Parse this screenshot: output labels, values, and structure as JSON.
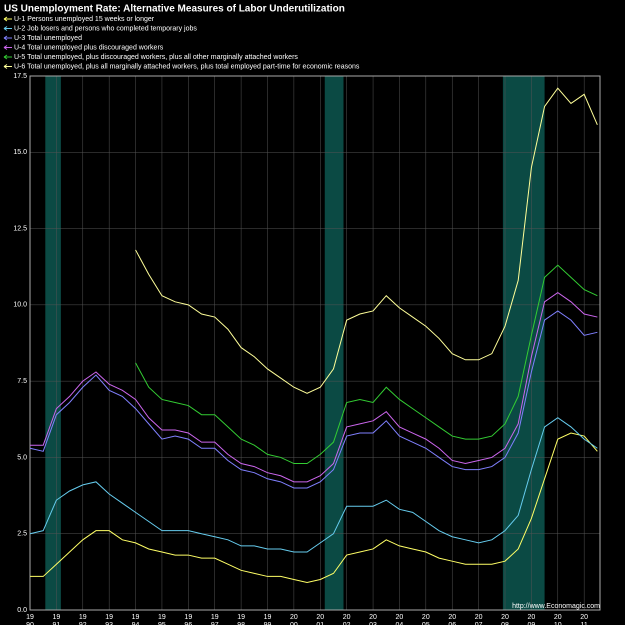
{
  "chart_data": {
    "type": "line",
    "title": "US Unemployment Rate: Alternative Measures of Labor Underutilization",
    "source": "http://www.Economagic.com",
    "x": [
      1990,
      1990.5,
      1991,
      1991.5,
      1992,
      1992.5,
      1993,
      1993.5,
      1994,
      1994.5,
      1995,
      1995.5,
      1996,
      1996.5,
      1997,
      1997.5,
      1998,
      1998.5,
      1999,
      1999.5,
      2000,
      2000.5,
      2001,
      2001.5,
      2002,
      2002.5,
      2003,
      2003.5,
      2004,
      2004.5,
      2005,
      2005.5,
      2006,
      2006.5,
      2007,
      2007.5,
      2008,
      2008.5,
      2009,
      2009.5,
      2010,
      2010.5,
      2011,
      2011.5
    ],
    "series": [
      {
        "name": "U-1 Persons unemployed 15 weeks or longer",
        "color": "#ffff66",
        "values": [
          1.1,
          1.1,
          1.5,
          1.9,
          2.3,
          2.6,
          2.6,
          2.3,
          2.2,
          2.0,
          1.9,
          1.8,
          1.8,
          1.7,
          1.7,
          1.5,
          1.3,
          1.2,
          1.1,
          1.1,
          1.0,
          0.9,
          1.0,
          1.2,
          1.8,
          1.9,
          2.0,
          2.3,
          2.1,
          2.0,
          1.9,
          1.7,
          1.6,
          1.5,
          1.5,
          1.5,
          1.6,
          2.0,
          3.0,
          4.3,
          5.6,
          5.8,
          5.7,
          5.2
        ]
      },
      {
        "name": "U-2 Job losers and persons who completed temporary jobs",
        "color": "#66ccee",
        "values": [
          2.5,
          2.6,
          3.6,
          3.9,
          4.1,
          4.2,
          3.8,
          3.5,
          3.2,
          2.9,
          2.6,
          2.6,
          2.6,
          2.5,
          2.4,
          2.3,
          2.1,
          2.1,
          2.0,
          2.0,
          1.9,
          1.9,
          2.2,
          2.5,
          3.4,
          3.4,
          3.4,
          3.6,
          3.3,
          3.2,
          2.9,
          2.6,
          2.4,
          2.3,
          2.2,
          2.3,
          2.6,
          3.1,
          4.6,
          6.0,
          6.3,
          6.0,
          5.6,
          5.3
        ]
      },
      {
        "name": "U-3 Total unemployed",
        "color": "#8080ff",
        "values": [
          5.3,
          5.2,
          6.4,
          6.8,
          7.3,
          7.7,
          7.2,
          7.0,
          6.6,
          6.1,
          5.6,
          5.7,
          5.6,
          5.3,
          5.3,
          4.9,
          4.6,
          4.5,
          4.3,
          4.2,
          4.0,
          4.0,
          4.2,
          4.6,
          5.7,
          5.8,
          5.8,
          6.2,
          5.7,
          5.5,
          5.3,
          5.0,
          4.7,
          4.6,
          4.6,
          4.7,
          5.0,
          5.8,
          7.8,
          9.5,
          9.8,
          9.5,
          9.0,
          9.1
        ]
      },
      {
        "name": "U-4 Total unemployed plus discouraged workers",
        "color": "#cc66ee",
        "values": [
          5.4,
          5.4,
          6.6,
          7.0,
          7.5,
          7.8,
          7.4,
          7.2,
          6.9,
          6.3,
          5.9,
          5.9,
          5.8,
          5.5,
          5.5,
          5.1,
          4.8,
          4.7,
          4.5,
          4.4,
          4.2,
          4.2,
          4.4,
          4.8,
          6.0,
          6.1,
          6.2,
          6.5,
          6.0,
          5.8,
          5.6,
          5.3,
          4.9,
          4.8,
          4.9,
          5.0,
          5.3,
          6.1,
          8.3,
          10.1,
          10.4,
          10.1,
          9.7,
          9.6
        ]
      },
      {
        "name": "U-5 Total unemployed, plus discouraged workers, plus all other marginally attached workers",
        "color": "#33cc33",
        "values": [
          null,
          null,
          null,
          null,
          null,
          null,
          null,
          null,
          8.1,
          7.3,
          6.9,
          6.8,
          6.7,
          6.4,
          6.4,
          6.0,
          5.6,
          5.4,
          5.1,
          5.0,
          4.8,
          4.8,
          5.1,
          5.5,
          6.8,
          6.9,
          6.8,
          7.3,
          6.9,
          6.6,
          6.3,
          6.0,
          5.7,
          5.6,
          5.6,
          5.7,
          6.1,
          7.0,
          9.0,
          10.9,
          11.3,
          10.9,
          10.5,
          10.3
        ]
      },
      {
        "name": "U-6 Total unemployed, plus all marginally attached workers, plus total employed part-time for economic reasons",
        "color": "#ffff99",
        "values": [
          null,
          null,
          null,
          null,
          null,
          null,
          null,
          null,
          11.8,
          11.0,
          10.3,
          10.1,
          10.0,
          9.7,
          9.6,
          9.2,
          8.6,
          8.3,
          7.9,
          7.6,
          7.3,
          7.1,
          7.3,
          7.9,
          9.5,
          9.7,
          9.8,
          10.3,
          9.9,
          9.6,
          9.3,
          8.9,
          8.4,
          8.2,
          8.2,
          8.4,
          9.3,
          10.8,
          14.5,
          16.5,
          17.1,
          16.6,
          16.9,
          15.9
        ]
      }
    ],
    "recessions": [
      [
        1990.58,
        1991.17
      ],
      [
        2001.17,
        2001.88
      ],
      [
        2007.92,
        2009.5
      ]
    ],
    "recession_color": "#0b4a44",
    "xlim": [
      1990,
      2011.6
    ],
    "xticks": [
      1990,
      1991,
      1992,
      1993,
      1994,
      1995,
      1996,
      1997,
      1998,
      1999,
      2000,
      2001,
      2002,
      2003,
      2004,
      2005,
      2006,
      2007,
      2008,
      2009,
      2010,
      2011
    ],
    "ylim": [
      0,
      17.5
    ],
    "yticks": [
      {
        "value": 0,
        "label": "0.0"
      },
      {
        "value": 2.5,
        "label": "2.5"
      },
      {
        "value": 5,
        "label": "5.0"
      },
      {
        "value": 7.5,
        "label": "7.5"
      },
      {
        "value": 10,
        "label": "10.0"
      },
      {
        "value": 12.5,
        "label": "12.5"
      },
      {
        "value": 15,
        "label": "15.0"
      },
      {
        "value": 17.5,
        "label": "17.5"
      }
    ],
    "grid": true
  }
}
